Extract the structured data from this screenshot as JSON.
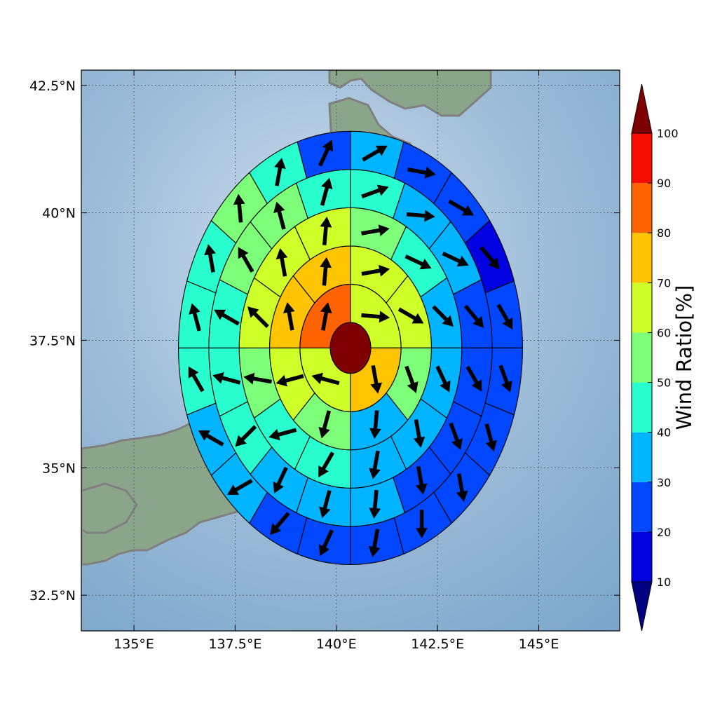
{
  "chart_data": {
    "type": "heatmap",
    "subtype": "polar-grid map with wind vectors",
    "title": "",
    "xlabel": "",
    "ylabel": "",
    "xlim": [
      133.7,
      147.0
    ],
    "ylim": [
      31.8,
      42.8
    ],
    "x_ticks": [
      135,
      137.5,
      140,
      142.5,
      145
    ],
    "x_tick_labels": [
      "135°E",
      "137.5°E",
      "140°E",
      "142.5°E",
      "145°E"
    ],
    "y_ticks": [
      32.5,
      35,
      37.5,
      40,
      42.5
    ],
    "y_tick_labels": [
      "32.5°N",
      "35°N",
      "37.5°N",
      "40°N",
      "42.5°N"
    ],
    "grid": true,
    "center": {
      "lon": 140.35,
      "lat": 37.35,
      "value": 100
    },
    "ring_radii_deg": [
      0.5,
      1.25,
      2.0,
      2.75,
      3.5,
      4.25
    ],
    "sectors_per_ring": [
      4,
      8,
      12,
      16,
      20
    ],
    "colorbar": {
      "label": "Wind Ratio[%]",
      "ticks": [
        10,
        20,
        30,
        40,
        50,
        60,
        70,
        80,
        90,
        100
      ],
      "tick_labels": [
        "10",
        "20",
        "30",
        "40",
        "50",
        "60",
        "70",
        "80",
        "90",
        "100"
      ],
      "extend": "both",
      "under_color": "#000080",
      "over_color": "#7f0000",
      "colors": [
        "#0000e0",
        "#0047ff",
        "#00b4ff",
        "#29ffce",
        "#7dff7a",
        "#ceff29",
        "#ffc400",
        "#ff6200",
        "#f50d00"
      ]
    },
    "ring_values": [
      [
        65,
        75,
        65,
        85
      ],
      [
        65,
        65,
        55,
        35,
        55,
        65,
        75,
        75
      ],
      [
        55,
        45,
        35,
        35,
        35,
        35,
        45,
        45,
        55,
        65,
        65,
        65
      ],
      [
        45,
        35,
        35,
        25,
        25,
        25,
        25,
        35,
        35,
        35,
        45,
        45,
        45,
        55,
        55,
        45
      ],
      [
        35,
        25,
        25,
        15,
        25,
        25,
        25,
        25,
        25,
        25,
        25,
        25,
        35,
        35,
        45,
        45,
        45,
        55,
        45,
        25
      ]
    ],
    "ring_wind_dir_deg": [
      [
        95,
        170,
        285,
        10
      ],
      [
        80,
        120,
        160,
        185,
        195,
        255,
        350,
        5
      ],
      [
        80,
        115,
        135,
        155,
        170,
        190,
        210,
        255,
        280,
        315,
        350,
        5
      ],
      [
        70,
        95,
        115,
        140,
        150,
        160,
        170,
        185,
        195,
        205,
        225,
        285,
        300,
        330,
        345,
        15
      ],
      [
        60,
        100,
        120,
        140,
        150,
        160,
        165,
        170,
        180,
        190,
        205,
        220,
        240,
        300,
        330,
        345,
        350,
        355,
        10,
        25
      ]
    ],
    "coastline_color": "#808080"
  }
}
